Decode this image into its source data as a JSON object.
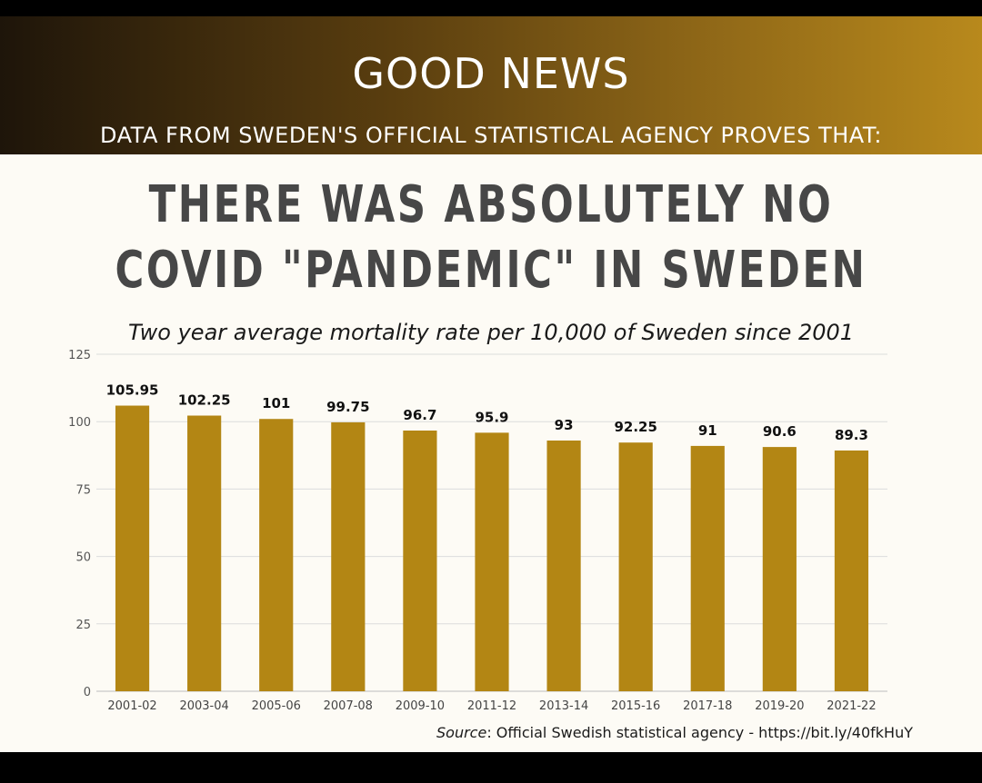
{
  "header": {
    "title": "GOOD NEWS",
    "subtitle": "DATA FROM SWEDEN'S OFFICIAL STATISTICAL AGENCY PROVES THAT:"
  },
  "headline": {
    "line1": "THERE WAS ABSOLUTELY  NO",
    "line2": "COVID \"PANDEMIC\" IN SWEDEN"
  },
  "source": {
    "label": "Source",
    "text": ": Official Swedish statistical agency - https://bit.ly/40fkHuY"
  },
  "colors": {
    "bar": "#b38614",
    "grid": "#dcdcdc",
    "header_start": "#1e150a",
    "header_end": "#b8891c"
  },
  "chart_data": {
    "type": "bar",
    "title": "Two year average mortality rate per 10,000 of Sweden since 2001",
    "xlabel": "",
    "ylabel": "",
    "categories": [
      "2001-02",
      "2003-04",
      "2005-06",
      "2007-08",
      "2009-10",
      "2011-12",
      "2013-14",
      "2015-16",
      "2017-18",
      "2019-20",
      "2021-22"
    ],
    "values": [
      105.95,
      102.25,
      101,
      99.75,
      96.7,
      95.9,
      93,
      92.25,
      91,
      90.6,
      89.3
    ],
    "data_labels": [
      "105.95",
      "102.25",
      "101",
      "99.75",
      "96.7",
      "95.9",
      "93",
      "92.25",
      "91",
      "90.6",
      "89.3"
    ],
    "ylim": [
      0,
      125
    ],
    "yticks": [
      0,
      25,
      50,
      75,
      100,
      125
    ],
    "grid": true,
    "legend": "none"
  }
}
